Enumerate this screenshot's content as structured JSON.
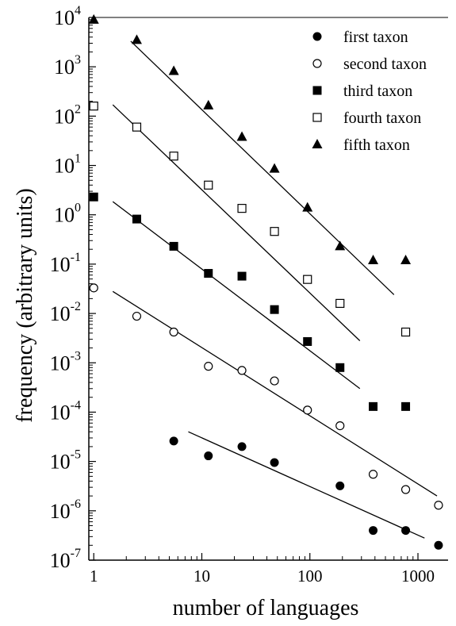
{
  "chart_data": {
    "type": "scatter",
    "xlabel": "number of languages",
    "ylabel": "frequency (arbitrary units)",
    "xscale": "log",
    "yscale": "log",
    "xlim": [
      0.9,
      1900
    ],
    "ylim": [
      1e-07,
      10000.0
    ],
    "x_ticks": [
      {
        "value": 1,
        "label": "1"
      },
      {
        "value": 10,
        "label": "10"
      },
      {
        "value": 100,
        "label": "100"
      },
      {
        "value": 1000,
        "label": "1000"
      }
    ],
    "y_ticks": [
      {
        "value": 10000.0,
        "base": "10",
        "exp": "4"
      },
      {
        "value": 1000.0,
        "base": "10",
        "exp": "3"
      },
      {
        "value": 100.0,
        "base": "10",
        "exp": "2"
      },
      {
        "value": 10.0,
        "base": "10",
        "exp": "1"
      },
      {
        "value": 1.0,
        "base": "10",
        "exp": "0"
      },
      {
        "value": 0.1,
        "base": "10",
        "exp": "-1"
      },
      {
        "value": 0.01,
        "base": "10",
        "exp": "-2"
      },
      {
        "value": 0.001,
        "base": "10",
        "exp": "-3"
      },
      {
        "value": 0.0001,
        "base": "10",
        "exp": "-4"
      },
      {
        "value": 1e-05,
        "base": "10",
        "exp": "-5"
      },
      {
        "value": 1e-06,
        "base": "10",
        "exp": "-6"
      },
      {
        "value": 1e-07,
        "base": "10",
        "exp": "-7"
      }
    ],
    "legend_position": "top-right",
    "series": [
      {
        "name": "first taxon",
        "marker": "circle-filled",
        "points": [
          [
            5.5,
            2.6e-05
          ],
          [
            11.5,
            1.3e-05
          ],
          [
            23.5,
            2e-05
          ],
          [
            47,
            9.5e-06
          ],
          [
            190,
            3.2e-06
          ],
          [
            385,
            4e-07
          ],
          [
            770,
            4e-07
          ],
          [
            1550,
            2e-07
          ]
        ],
        "fit": [
          [
            7.5,
            4e-05
          ],
          [
            1150,
            2.8e-07
          ]
        ]
      },
      {
        "name": "second taxon",
        "marker": "circle-open",
        "points": [
          [
            1,
            0.033
          ],
          [
            2.5,
            0.0088
          ],
          [
            5.5,
            0.0042
          ],
          [
            11.5,
            0.00085
          ],
          [
            23.5,
            0.0007
          ],
          [
            47,
            0.00043
          ],
          [
            95,
            0.00011
          ],
          [
            190,
            5.3e-05
          ],
          [
            385,
            5.5e-06
          ],
          [
            770,
            2.7e-06
          ],
          [
            1550,
            1.3e-06
          ]
        ],
        "fit": [
          [
            1.5,
            0.028
          ],
          [
            1500,
            2e-06
          ]
        ]
      },
      {
        "name": "third taxon",
        "marker": "square-filled",
        "points": [
          [
            1,
            2.3
          ],
          [
            2.5,
            0.82
          ],
          [
            5.5,
            0.23
          ],
          [
            11.5,
            0.065
          ],
          [
            23.5,
            0.057
          ],
          [
            47,
            0.012
          ],
          [
            95,
            0.0027
          ],
          [
            190,
            0.0008
          ],
          [
            385,
            0.00013
          ],
          [
            770,
            0.00013
          ]
        ],
        "fit": [
          [
            1.5,
            1.85
          ],
          [
            290,
            0.0003
          ]
        ]
      },
      {
        "name": "fourth taxon",
        "marker": "square-open",
        "points": [
          [
            1,
            160
          ],
          [
            2.5,
            60
          ],
          [
            5.5,
            15.5
          ],
          [
            11.5,
            4.0
          ],
          [
            23.5,
            1.35
          ],
          [
            47,
            0.46
          ],
          [
            95,
            0.049
          ],
          [
            190,
            0.016
          ],
          [
            770,
            0.0042
          ]
        ],
        "fit": [
          [
            1.5,
            170
          ],
          [
            290,
            0.0028
          ]
        ]
      },
      {
        "name": "fifth taxon",
        "marker": "triangle-filled",
        "points": [
          [
            1,
            9000
          ],
          [
            2.5,
            3500
          ],
          [
            5.5,
            820
          ],
          [
            11.5,
            165
          ],
          [
            23.5,
            38
          ],
          [
            47,
            8.6
          ],
          [
            95,
            1.4
          ],
          [
            190,
            0.23
          ],
          [
            385,
            0.12
          ],
          [
            770,
            0.12
          ]
        ],
        "fit": [
          [
            2.2,
            3300
          ],
          [
            600,
            0.024
          ]
        ]
      }
    ]
  }
}
